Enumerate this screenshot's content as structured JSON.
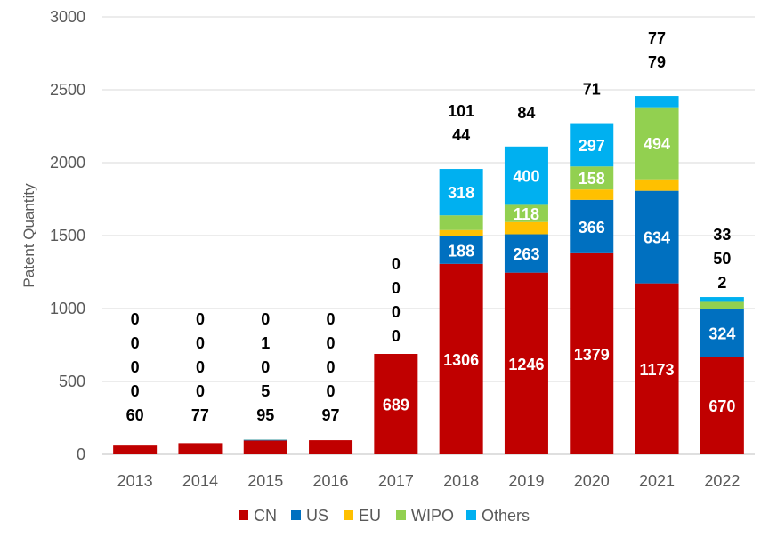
{
  "chart_data": {
    "type": "bar",
    "stacked": true,
    "title": "",
    "xlabel": "",
    "ylabel": "Patent Quantity",
    "ylim": [
      0,
      3000
    ],
    "yticks": [
      0,
      500,
      1000,
      1500,
      2000,
      2500,
      3000
    ],
    "grid": true,
    "legend_position": "bottom",
    "categories": [
      "2013",
      "2014",
      "2015",
      "2016",
      "2017",
      "2018",
      "2019",
      "2020",
      "2021",
      "2022"
    ],
    "series": [
      {
        "name": "CN",
        "color": "#C00000",
        "values": [
          60,
          77,
          95,
          97,
          689,
          1306,
          1246,
          1379,
          1173,
          670
        ]
      },
      {
        "name": "US",
        "color": "#0070C0",
        "values": [
          0,
          0,
          5,
          0,
          0,
          188,
          263,
          366,
          634,
          324
        ]
      },
      {
        "name": "EU",
        "color": "#FFC000",
        "values": [
          0,
          0,
          0,
          0,
          0,
          44,
          84,
          71,
          79,
          2
        ]
      },
      {
        "name": "WIPO",
        "color": "#92D050",
        "values": [
          0,
          0,
          1,
          0,
          0,
          101,
          118,
          158,
          494,
          50
        ]
      },
      {
        "name": "Others",
        "color": "#00B0F0",
        "values": [
          0,
          0,
          0,
          0,
          0,
          318,
          400,
          297,
          77,
          33
        ]
      }
    ]
  }
}
